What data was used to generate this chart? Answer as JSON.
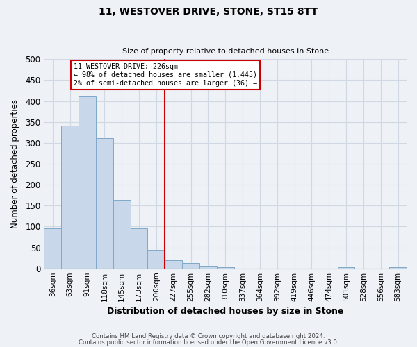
{
  "title": "11, WESTOVER DRIVE, STONE, ST15 8TT",
  "subtitle": "Size of property relative to detached houses in Stone",
  "xlabel": "Distribution of detached houses by size in Stone",
  "ylabel": "Number of detached properties",
  "bar_color": "#c8d8ea",
  "bar_edge_color": "#7fa8c8",
  "bins": [
    "36sqm",
    "63sqm",
    "91sqm",
    "118sqm",
    "145sqm",
    "173sqm",
    "200sqm",
    "227sqm",
    "255sqm",
    "282sqm",
    "310sqm",
    "337sqm",
    "364sqm",
    "392sqm",
    "419sqm",
    "446sqm",
    "474sqm",
    "501sqm",
    "528sqm",
    "556sqm",
    "583sqm"
  ],
  "values": [
    96,
    341,
    411,
    311,
    164,
    95,
    44,
    20,
    13,
    5,
    3,
    0,
    0,
    0,
    0,
    0,
    0,
    3,
    0,
    0,
    3
  ],
  "ylim": [
    0,
    500
  ],
  "yticks": [
    0,
    50,
    100,
    150,
    200,
    250,
    300,
    350,
    400,
    450,
    500
  ],
  "property_line_idx": 7,
  "property_line_label": "11 WESTOVER DRIVE: 226sqm",
  "annotation_line1": "← 98% of detached houses are smaller (1,445)",
  "annotation_line2": "2% of semi-detached houses are larger (36) →",
  "annotation_box_color": "#ffffff",
  "annotation_box_edge_color": "#cc0000",
  "property_line_color": "#cc0000",
  "footer1": "Contains HM Land Registry data © Crown copyright and database right 2024.",
  "footer2": "Contains public sector information licensed under the Open Government Licence v3.0.",
  "background_color": "#eef2f7",
  "grid_color": "#d0d8e4"
}
